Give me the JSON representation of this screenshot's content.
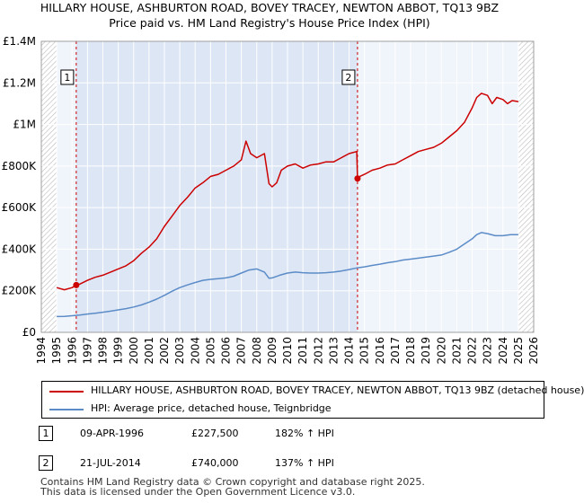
{
  "title_line1": "HILLARY HOUSE, ASHBURTON ROAD, BOVEY TRACEY, NEWTON ABBOT, TQ13 9BZ",
  "title_line2": "Price paid vs. HM Land Registry's House Price Index (HPI)",
  "chart_data": {
    "type": "line",
    "title": "HILLARY HOUSE, ASHBURTON ROAD, BOVEY TRACEY, NEWTON ABBOT, TQ13 9BZ — Price paid vs. HM Land Registry's House Price Index (HPI)",
    "xlim": [
      1994,
      2026
    ],
    "ylim": [
      0,
      1400000
    ],
    "x_ticks": [
      1994,
      1995,
      1996,
      1997,
      1998,
      1999,
      2000,
      2001,
      2002,
      2003,
      2004,
      2005,
      2006,
      2007,
      2008,
      2009,
      2010,
      2011,
      2012,
      2013,
      2014,
      2015,
      2016,
      2017,
      2018,
      2019,
      2020,
      2021,
      2022,
      2023,
      2024,
      2025,
      2026
    ],
    "y_ticks": [
      0,
      200000,
      400000,
      600000,
      800000,
      1000000,
      1200000,
      1400000
    ],
    "y_tick_labels": [
      "£0",
      "£200K",
      "£400K",
      "£600K",
      "£800K",
      "£1M",
      "£1.2M",
      "£1.4M"
    ],
    "grid": true,
    "hatched_regions": [
      [
        1994,
        1995
      ],
      [
        2025,
        2026
      ]
    ],
    "shaded_region": [
      1996.27,
      2014.55
    ],
    "series": [
      {
        "name": "HILLARY HOUSE, ASHBURTON ROAD, BOVEY TRACEY, NEWTON ABBOT, TQ13 9BZ (detached house)",
        "color": "#cc0000",
        "x": [
          1995.0,
          1995.5,
          1996.0,
          1996.27,
          1996.5,
          1997.0,
          1997.5,
          1998.0,
          1998.5,
          1999.0,
          1999.5,
          2000.0,
          2000.5,
          2001.0,
          2001.5,
          2002.0,
          2002.5,
          2003.0,
          2003.5,
          2004.0,
          2004.5,
          2005.0,
          2005.5,
          2006.0,
          2006.5,
          2007.0,
          2007.3,
          2007.6,
          2008.0,
          2008.5,
          2008.8,
          2009.0,
          2009.3,
          2009.6,
          2010.0,
          2010.5,
          2011.0,
          2011.5,
          2012.0,
          2012.5,
          2013.0,
          2013.5,
          2014.0,
          2014.5,
          2014.55,
          2014.7,
          2015.0,
          2015.5,
          2016.0,
          2016.5,
          2017.0,
          2017.5,
          2018.0,
          2018.5,
          2019.0,
          2019.5,
          2020.0,
          2020.5,
          2021.0,
          2021.5,
          2022.0,
          2022.3,
          2022.6,
          2023.0,
          2023.3,
          2023.6,
          2024.0,
          2024.3,
          2024.6,
          2025.0
        ],
        "y": [
          215000,
          205000,
          215000,
          227500,
          232000,
          250000,
          265000,
          275000,
          290000,
          305000,
          320000,
          345000,
          380000,
          410000,
          450000,
          510000,
          560000,
          610000,
          650000,
          695000,
          720000,
          750000,
          760000,
          780000,
          800000,
          830000,
          920000,
          860000,
          840000,
          860000,
          715000,
          700000,
          720000,
          780000,
          800000,
          810000,
          790000,
          805000,
          810000,
          820000,
          820000,
          840000,
          860000,
          870000,
          740000,
          750000,
          760000,
          780000,
          790000,
          805000,
          810000,
          830000,
          850000,
          870000,
          880000,
          890000,
          910000,
          940000,
          970000,
          1010000,
          1080000,
          1130000,
          1150000,
          1140000,
          1100000,
          1130000,
          1120000,
          1100000,
          1115000,
          1110000
        ]
      },
      {
        "name": "HPI: Average price, detached house, Teignbridge",
        "color": "#5b8cc8",
        "x": [
          1995.0,
          1995.5,
          1996.0,
          1996.5,
          1997.0,
          1997.5,
          1998.0,
          1998.5,
          1999.0,
          1999.5,
          2000.0,
          2000.5,
          2001.0,
          2001.5,
          2002.0,
          2002.5,
          2003.0,
          2003.5,
          2004.0,
          2004.5,
          2005.0,
          2005.5,
          2006.0,
          2006.5,
          2007.0,
          2007.5,
          2008.0,
          2008.5,
          2008.8,
          2009.0,
          2009.5,
          2010.0,
          2010.5,
          2011.0,
          2011.5,
          2012.0,
          2012.5,
          2013.0,
          2013.5,
          2014.0,
          2014.5,
          2015.0,
          2015.5,
          2016.0,
          2016.5,
          2017.0,
          2017.5,
          2018.0,
          2018.5,
          2019.0,
          2019.5,
          2020.0,
          2020.5,
          2021.0,
          2021.5,
          2022.0,
          2022.3,
          2022.6,
          2023.0,
          2023.5,
          2024.0,
          2024.5,
          2025.0
        ],
        "y": [
          76000,
          77000,
          80000,
          83000,
          88000,
          92000,
          97000,
          102000,
          108000,
          114000,
          122000,
          132000,
          145000,
          160000,
          178000,
          198000,
          215000,
          228000,
          240000,
          250000,
          255000,
          258000,
          262000,
          270000,
          285000,
          300000,
          305000,
          290000,
          260000,
          262000,
          275000,
          285000,
          290000,
          287000,
          285000,
          285000,
          287000,
          290000,
          295000,
          302000,
          310000,
          315000,
          322000,
          328000,
          335000,
          340000,
          348000,
          352000,
          357000,
          362000,
          367000,
          372000,
          385000,
          400000,
          425000,
          450000,
          470000,
          480000,
          475000,
          465000,
          465000,
          470000,
          470000
        ]
      }
    ],
    "markers": [
      {
        "label": "1",
        "x": 1996.27,
        "y": 227500
      },
      {
        "label": "2",
        "x": 2014.55,
        "y": 740000
      }
    ]
  },
  "legend": [
    {
      "label": "HILLARY HOUSE, ASHBURTON ROAD, BOVEY TRACEY, NEWTON ABBOT, TQ13 9BZ (detached house)",
      "color": "#cc0000"
    },
    {
      "label": "HPI: Average price, detached house, Teignbridge",
      "color": "#5b8cc8"
    }
  ],
  "transactions": [
    {
      "num": "1",
      "date": "09-APR-1996",
      "price": "£227,500",
      "hpi": "182% ↑ HPI"
    },
    {
      "num": "2",
      "date": "21-JUL-2014",
      "price": "£740,000",
      "hpi": "137% ↑ HPI"
    }
  ],
  "footer_line1": "Contains HM Land Registry data © Crown copyright and database right 2025.",
  "footer_line2": "This data is licensed under the Open Government Licence v3.0."
}
